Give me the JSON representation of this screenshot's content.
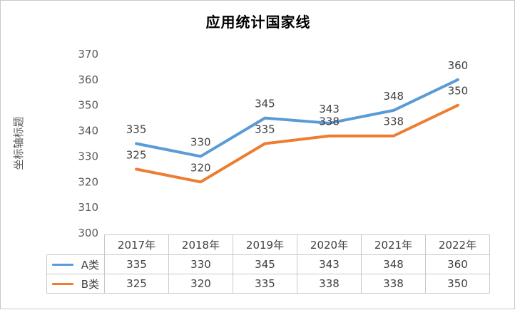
{
  "chart_data": {
    "type": "line",
    "title": "应用统计国家线",
    "ylabel": "坐标轴标题",
    "xlabel": "",
    "categories": [
      "2017年",
      "2018年",
      "2019年",
      "2020年",
      "2021年",
      "2022年"
    ],
    "series": [
      {
        "name": "A类",
        "color": "#5B9BD5",
        "values": [
          335,
          330,
          345,
          343,
          348,
          360
        ]
      },
      {
        "name": "B类",
        "color": "#ED7D31",
        "values": [
          325,
          320,
          335,
          338,
          338,
          350
        ]
      }
    ],
    "ylim": [
      300,
      370
    ],
    "yticks": [
      300,
      310,
      320,
      330,
      340,
      350,
      360,
      370
    ],
    "grid": false,
    "data_labels": true,
    "legend_position": "table-left"
  }
}
